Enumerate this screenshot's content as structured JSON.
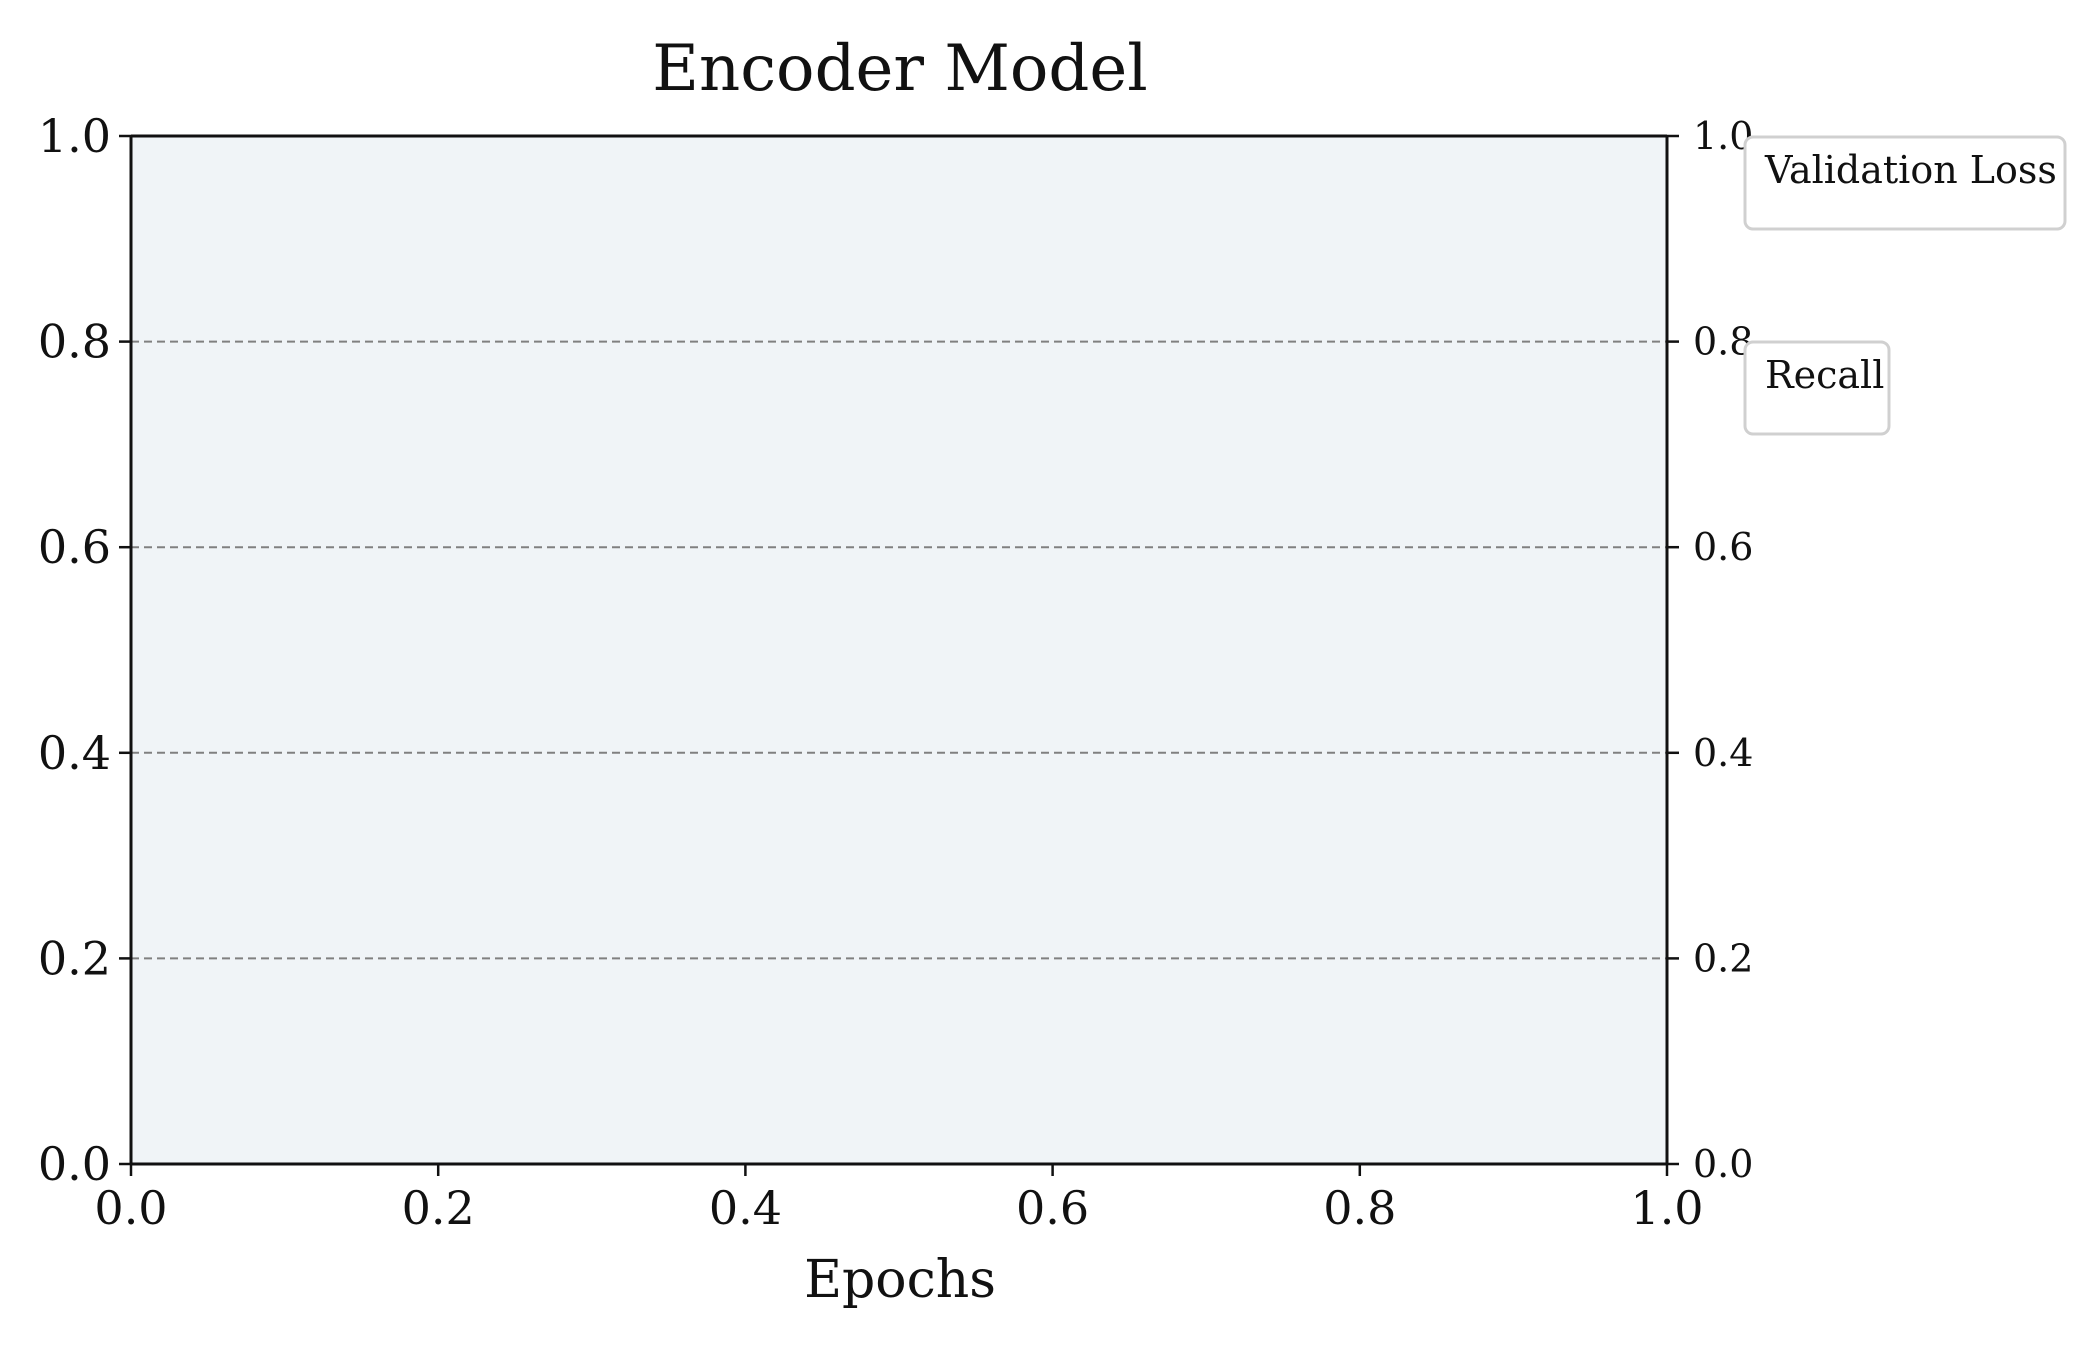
{
  "chart_data": {
    "type": "line",
    "title": "Encoder Model",
    "xlabel": "Epochs",
    "ylabel": "",
    "xlim": [
      0.0,
      1.0
    ],
    "ylim_left": [
      0.0,
      1.0
    ],
    "ylim_right": [
      0.0,
      1.0
    ],
    "x_ticks": [
      "0.0",
      "0.2",
      "0.4",
      "0.6",
      "0.8",
      "1.0"
    ],
    "y_ticks_left": [
      "0.0",
      "0.2",
      "0.4",
      "0.6",
      "0.8",
      "1.0"
    ],
    "y_ticks_right": [
      "0.0",
      "0.2",
      "0.4",
      "0.6",
      "0.8",
      "1.0"
    ],
    "grid": "horizontal-dashed",
    "legends": [
      {
        "label": "Validation Loss",
        "axis": "left",
        "placement": "outside-top-right"
      },
      {
        "label": "Recall",
        "axis": "right",
        "placement": "outside-right"
      }
    ],
    "series": [],
    "colors": {
      "plot_background": "#f0f4f7",
      "grid": "#808080",
      "axis": "#111111",
      "legend_border": "#d0d0d0"
    }
  }
}
